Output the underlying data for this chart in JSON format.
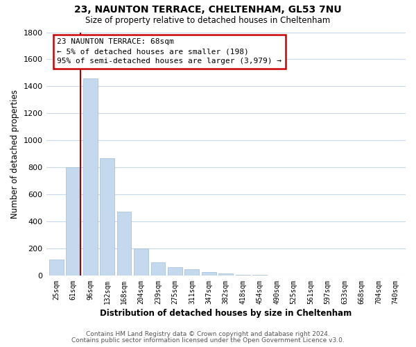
{
  "title": "23, NAUNTON TERRACE, CHELTENHAM, GL53 7NU",
  "subtitle": "Size of property relative to detached houses in Cheltenham",
  "xlabel": "Distribution of detached houses by size in Cheltenham",
  "ylabel": "Number of detached properties",
  "bar_labels": [
    "25sqm",
    "61sqm",
    "96sqm",
    "132sqm",
    "168sqm",
    "204sqm",
    "239sqm",
    "275sqm",
    "311sqm",
    "347sqm",
    "382sqm",
    "418sqm",
    "454sqm",
    "490sqm",
    "525sqm",
    "561sqm",
    "597sqm",
    "633sqm",
    "668sqm",
    "704sqm",
    "740sqm"
  ],
  "bar_values": [
    120,
    800,
    1460,
    870,
    475,
    200,
    100,
    65,
    50,
    30,
    20,
    5,
    5,
    0,
    0,
    0,
    0,
    0,
    0,
    0,
    0
  ],
  "bar_color": "#c5d9ee",
  "bar_edge_color": "#a0bcd8",
  "highlight_color": "#aa0000",
  "annotation_title": "23 NAUNTON TERRACE: 68sqm",
  "annotation_line1": "← 5% of detached houses are smaller (198)",
  "annotation_line2": "95% of semi-detached houses are larger (3,979) →",
  "annotation_box_color": "#ffffff",
  "annotation_box_edge": "#cc0000",
  "ylim": [
    0,
    1800
  ],
  "yticks": [
    0,
    200,
    400,
    600,
    800,
    1000,
    1200,
    1400,
    1600,
    1800
  ],
  "vline_bar_index": 1,
  "footer1": "Contains HM Land Registry data © Crown copyright and database right 2024.",
  "footer2": "Contains public sector information licensed under the Open Government Licence v3.0.",
  "bg_color": "#ffffff",
  "grid_color": "#c8d8ec"
}
